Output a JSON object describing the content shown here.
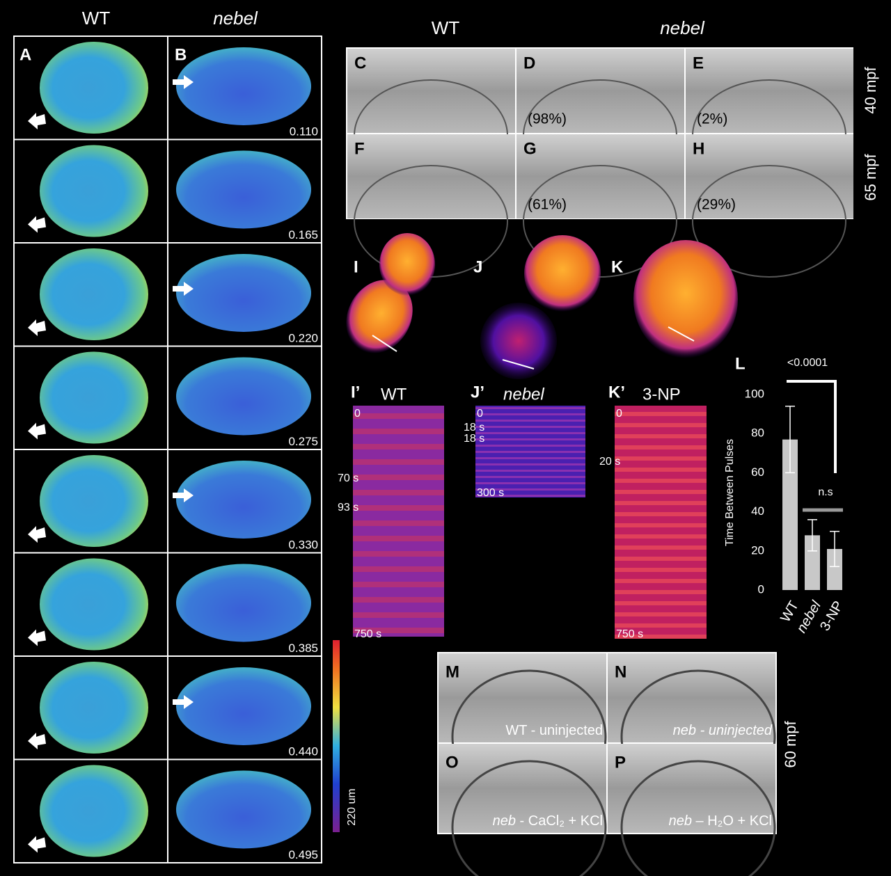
{
  "left_panel": {
    "headers": [
      "WT",
      "nebel"
    ],
    "labels": [
      "A",
      "B"
    ],
    "values": [
      "0.110",
      "0.165",
      "0.220",
      "0.275",
      "0.330",
      "0.385",
      "0.440",
      "0.495"
    ],
    "scale_label": "220 um"
  },
  "top_right": {
    "headers": [
      "WT",
      "nebel"
    ],
    "panels": [
      {
        "label": "C"
      },
      {
        "label": "D",
        "note": "(98%)"
      },
      {
        "label": "E",
        "note": "(2%)"
      },
      {
        "label": "F"
      },
      {
        "label": "G",
        "note": "(61%)"
      },
      {
        "label": "H",
        "note": "(29%)"
      }
    ],
    "rows": [
      "40 mpf",
      "65 mpf"
    ]
  },
  "kymographs": [
    {
      "label": "I",
      "sublabel": "I’",
      "title": "WT",
      "start": "0",
      "marks": [
        "70 s",
        "93 s"
      ],
      "end": "750 s"
    },
    {
      "label": "J",
      "sublabel": "J’",
      "title": "nebel",
      "start": "0",
      "marks": [
        "18 s",
        "18 s"
      ],
      "end": "300 s"
    },
    {
      "label": "K",
      "sublabel": "K’",
      "title": "3-NP",
      "start": "0",
      "marks": [
        "20 s"
      ],
      "end": "750 s"
    }
  ],
  "chart_data": {
    "type": "bar",
    "title": "L",
    "y_label": "Time Between Pulses",
    "categories": [
      "WT",
      "nebel",
      "3-NP"
    ],
    "values": [
      77,
      28,
      21
    ],
    "errors": [
      17,
      8,
      9
    ],
    "color": "#c8c8c8",
    "ylim": [
      0,
      100
    ],
    "yticks": [
      0,
      20,
      40,
      60,
      80,
      100
    ],
    "annotations": [
      "<0.0001",
      "n.s"
    ]
  },
  "bottom": {
    "panels": [
      {
        "label": "M",
        "caption": "WT - uninjected"
      },
      {
        "label": "N",
        "caption": "neb - uninjected"
      },
      {
        "label": "O",
        "prefix": "neb",
        "caption": " - CaCl₂ + KCl"
      },
      {
        "label": "P",
        "prefix": "neb",
        "caption": " – H₂O + KCl"
      }
    ],
    "row_label": "60 mpf"
  }
}
